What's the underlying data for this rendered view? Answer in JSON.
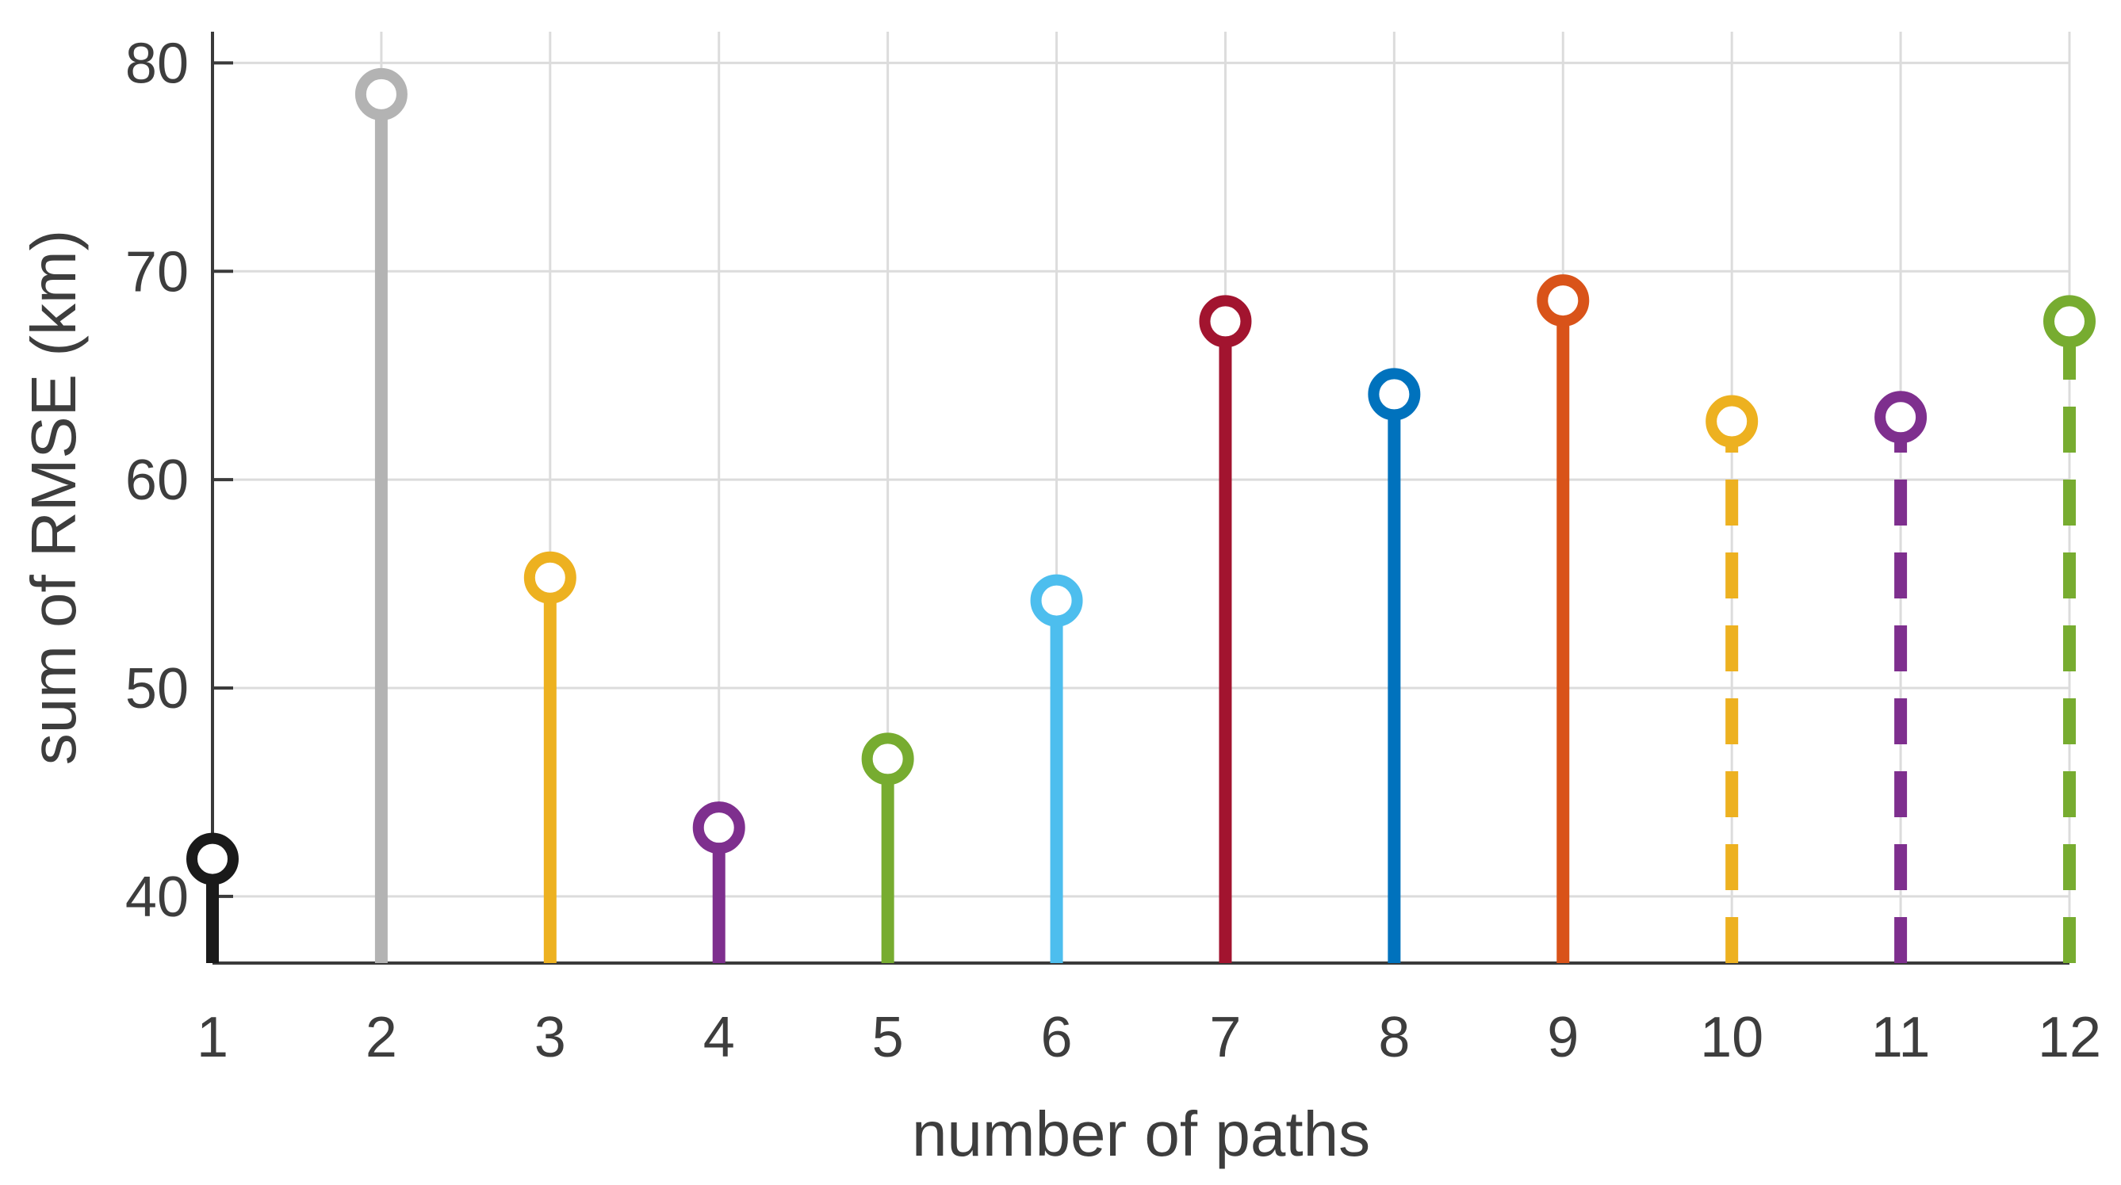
{
  "chart_data": {
    "type": "stem",
    "title": "",
    "xlabel": "number of paths",
    "ylabel": "sum of RMSE (km)",
    "x": [
      1,
      2,
      3,
      4,
      5,
      6,
      7,
      8,
      9,
      10,
      11,
      12
    ],
    "xlim": [
      1,
      12
    ],
    "ylim": [
      36.8,
      81.5
    ],
    "yticks": [
      40,
      50,
      60,
      70,
      80
    ],
    "grid": true,
    "legend": "none",
    "points": [
      {
        "x": 1,
        "y": 41.8,
        "color": "#1a1a1a",
        "linestyle": "solid"
      },
      {
        "x": 2,
        "y": 78.5,
        "color": "#b3b3b3",
        "linestyle": "solid"
      },
      {
        "x": 3,
        "y": 55.3,
        "color": "#EDB120",
        "linestyle": "solid"
      },
      {
        "x": 4,
        "y": 43.3,
        "color": "#7E2F8E",
        "linestyle": "solid"
      },
      {
        "x": 5,
        "y": 46.6,
        "color": "#77AC30",
        "linestyle": "solid"
      },
      {
        "x": 6,
        "y": 54.2,
        "color": "#4DBEEE",
        "linestyle": "solid"
      },
      {
        "x": 7,
        "y": 67.6,
        "color": "#A2142F",
        "linestyle": "solid"
      },
      {
        "x": 8,
        "y": 64.1,
        "color": "#0072BD",
        "linestyle": "solid"
      },
      {
        "x": 9,
        "y": 68.6,
        "color": "#D95319",
        "linestyle": "solid"
      },
      {
        "x": 10,
        "y": 62.8,
        "color": "#EDB120",
        "linestyle": "dashed"
      },
      {
        "x": 11,
        "y": 63.0,
        "color": "#7E2F8E",
        "linestyle": "dashed"
      },
      {
        "x": 12,
        "y": 67.6,
        "color": "#77AC30",
        "linestyle": "dashed"
      }
    ]
  }
}
